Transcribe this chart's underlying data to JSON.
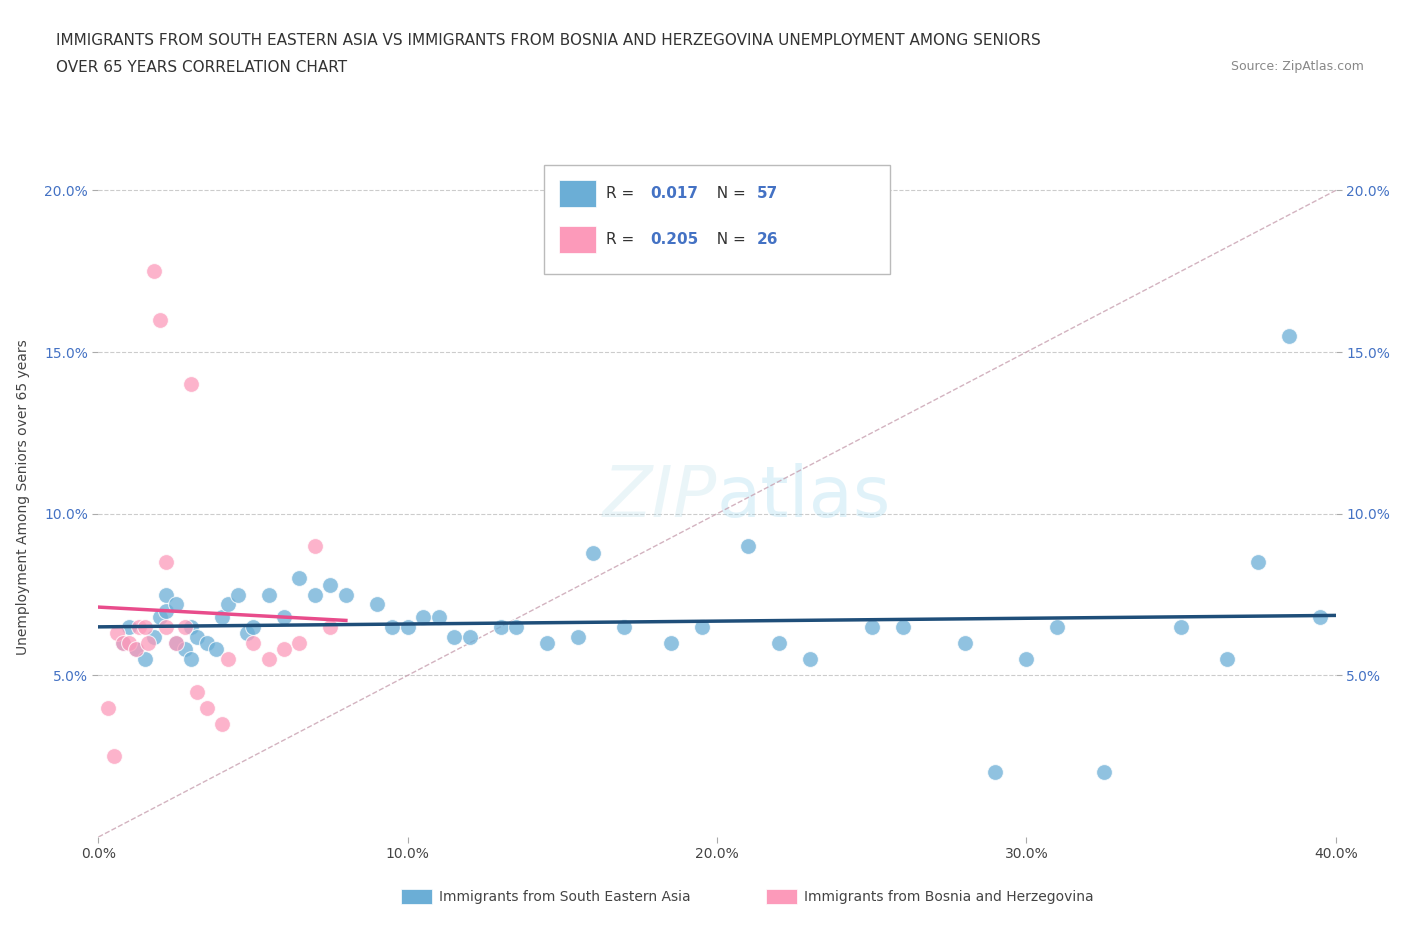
{
  "title_line1": "IMMIGRANTS FROM SOUTH EASTERN ASIA VS IMMIGRANTS FROM BOSNIA AND HERZEGOVINA UNEMPLOYMENT AMONG SENIORS",
  "title_line2": "OVER 65 YEARS CORRELATION CHART",
  "source_text": "Source: ZipAtlas.com",
  "ylabel": "Unemployment Among Seniors over 65 years",
  "xlim": [
    0.0,
    0.4
  ],
  "ylim": [
    0.0,
    0.21
  ],
  "xticks": [
    0.0,
    0.1,
    0.2,
    0.3,
    0.4
  ],
  "xticklabels": [
    "0.0%",
    "10.0%",
    "20.0%",
    "30.0%",
    "40.0%"
  ],
  "yticks": [
    0.05,
    0.1,
    0.15,
    0.2
  ],
  "yticklabels": [
    "5.0%",
    "10.0%",
    "15.0%",
    "20.0%"
  ],
  "blue_color": "#6baed6",
  "pink_color": "#fc9aba",
  "blue_line_color": "#1f4e79",
  "pink_line_color": "#e84c8b",
  "dashed_line_color": "#c8a0b0",
  "grid_color": "#cccccc",
  "legend_R1": "0.017",
  "legend_N1": "57",
  "legend_R2": "0.205",
  "legend_N2": "26",
  "blue_scatter_x": [
    0.008,
    0.01,
    0.012,
    0.015,
    0.018,
    0.02,
    0.022,
    0.022,
    0.025,
    0.025,
    0.028,
    0.03,
    0.03,
    0.032,
    0.035,
    0.038,
    0.04,
    0.042,
    0.045,
    0.048,
    0.05,
    0.055,
    0.06,
    0.065,
    0.07,
    0.075,
    0.08,
    0.09,
    0.095,
    0.1,
    0.105,
    0.11,
    0.115,
    0.12,
    0.13,
    0.135,
    0.145,
    0.155,
    0.16,
    0.17,
    0.185,
    0.195,
    0.21,
    0.22,
    0.23,
    0.25,
    0.26,
    0.28,
    0.29,
    0.3,
    0.31,
    0.325,
    0.35,
    0.365,
    0.375,
    0.385,
    0.395
  ],
  "blue_scatter_y": [
    0.06,
    0.065,
    0.058,
    0.055,
    0.062,
    0.068,
    0.07,
    0.075,
    0.06,
    0.072,
    0.058,
    0.065,
    0.055,
    0.062,
    0.06,
    0.058,
    0.068,
    0.072,
    0.075,
    0.063,
    0.065,
    0.075,
    0.068,
    0.08,
    0.075,
    0.078,
    0.075,
    0.072,
    0.065,
    0.065,
    0.068,
    0.068,
    0.062,
    0.062,
    0.065,
    0.065,
    0.06,
    0.062,
    0.088,
    0.065,
    0.06,
    0.065,
    0.09,
    0.06,
    0.055,
    0.065,
    0.065,
    0.06,
    0.02,
    0.055,
    0.065,
    0.02,
    0.065,
    0.055,
    0.085,
    0.155,
    0.068
  ],
  "pink_scatter_x": [
    0.003,
    0.005,
    0.006,
    0.008,
    0.01,
    0.012,
    0.013,
    0.015,
    0.016,
    0.018,
    0.02,
    0.022,
    0.022,
    0.025,
    0.028,
    0.03,
    0.032,
    0.035,
    0.04,
    0.042,
    0.05,
    0.055,
    0.06,
    0.065,
    0.07,
    0.075
  ],
  "pink_scatter_y": [
    0.04,
    0.025,
    0.063,
    0.06,
    0.06,
    0.058,
    0.065,
    0.065,
    0.06,
    0.175,
    0.16,
    0.085,
    0.065,
    0.06,
    0.065,
    0.14,
    0.045,
    0.04,
    0.035,
    0.055,
    0.06,
    0.055,
    0.058,
    0.06,
    0.09,
    0.065
  ]
}
